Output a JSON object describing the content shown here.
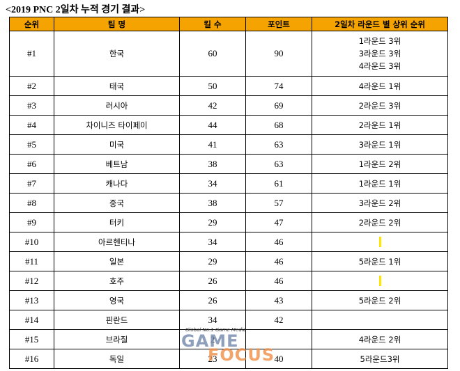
{
  "title": "<2019 PNC 2일차 누적 경기 결과>",
  "headers": {
    "rank": "순위",
    "team": "팀 명",
    "kills": "킬 수",
    "points": "포인트",
    "round_ranks": "2일차 라운드 별 상위 순위"
  },
  "rows": [
    {
      "rank": "#1",
      "team": "한국",
      "kills": "60",
      "points": "90",
      "notes": [
        "1라운드 3위",
        "3라운드 3위",
        "4라운드 3위"
      ]
    },
    {
      "rank": "#2",
      "team": "태국",
      "kills": "50",
      "points": "74",
      "notes": [
        "4라운드 1위"
      ]
    },
    {
      "rank": "#3",
      "team": "러시아",
      "kills": "42",
      "points": "69",
      "notes": [
        "2라운드 3위"
      ]
    },
    {
      "rank": "#4",
      "team": "차이니즈 타이페이",
      "kills": "44",
      "points": "68",
      "notes": [
        "2라운드 1위"
      ]
    },
    {
      "rank": "#5",
      "team": "미국",
      "kills": "41",
      "points": "63",
      "notes": [
        "3라운드 1위"
      ]
    },
    {
      "rank": "#6",
      "team": "베트남",
      "kills": "38",
      "points": "63",
      "notes": [
        "1라운드 2위"
      ]
    },
    {
      "rank": "#7",
      "team": "캐나다",
      "kills": "34",
      "points": "61",
      "notes": [
        "1라운드 1위"
      ]
    },
    {
      "rank": "#8",
      "team": "중국",
      "kills": "38",
      "points": "57",
      "notes": [
        "3라운드 2위"
      ]
    },
    {
      "rank": "#9",
      "team": "터키",
      "kills": "29",
      "points": "47",
      "notes": [
        "2라운드 2위"
      ]
    },
    {
      "rank": "#10",
      "team": "아르헨티나",
      "kills": "34",
      "points": "46",
      "notes": [],
      "marker": true
    },
    {
      "rank": "#11",
      "team": "일본",
      "kills": "29",
      "points": "46",
      "notes": [
        "5라운드 1위"
      ]
    },
    {
      "rank": "#12",
      "team": "호주",
      "kills": "26",
      "points": "46",
      "notes": [],
      "marker": true
    },
    {
      "rank": "#13",
      "team": "영국",
      "kills": "26",
      "points": "43",
      "notes": [
        "5라운드 2위"
      ]
    },
    {
      "rank": "#14",
      "team": "핀란드",
      "kills": "34",
      "points": "42",
      "notes": []
    },
    {
      "rank": "#15",
      "team": "브라질",
      "kills": "2",
      "points": "",
      "notes": [
        "4라운드 2위"
      ]
    },
    {
      "rank": "#16",
      "team": "독일",
      "kills": "23",
      "points": "40",
      "notes": [
        "5라운드3위"
      ]
    }
  ],
  "watermark": {
    "tagline": "Global No.1 Game Media",
    "word1": "GAME",
    "word2": "FOCUS"
  },
  "colors": {
    "header_bg": "#f5a300",
    "marker": "#ffe600"
  }
}
